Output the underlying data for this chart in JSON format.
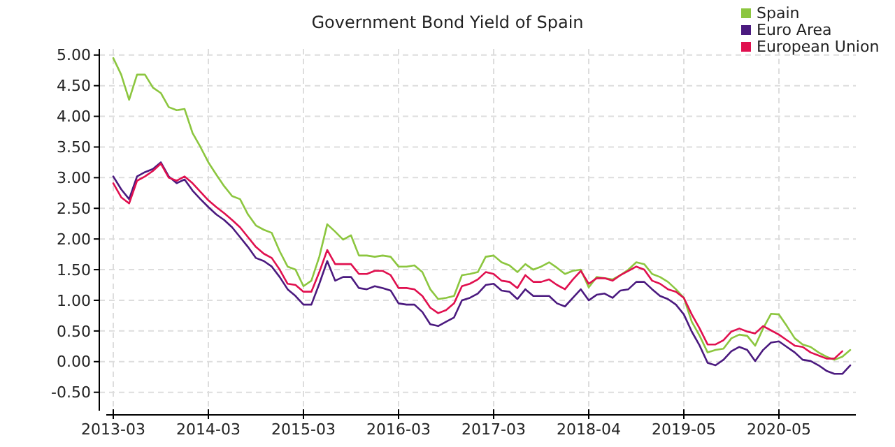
{
  "chart_data": {
    "type": "line",
    "title": "Government Bond Yield of Spain",
    "categories": [
      "2013-03",
      null,
      null,
      null,
      null,
      null,
      null,
      null,
      null,
      null,
      null,
      null,
      "2014-03",
      null,
      null,
      null,
      null,
      null,
      null,
      null,
      null,
      null,
      null,
      null,
      "2015-03",
      null,
      null,
      null,
      null,
      null,
      null,
      null,
      null,
      null,
      null,
      null,
      "2016-03",
      null,
      null,
      null,
      null,
      null,
      null,
      null,
      null,
      null,
      null,
      null,
      "2017-03",
      null,
      null,
      null,
      null,
      null,
      null,
      null,
      null,
      null,
      null,
      null,
      "2018-04",
      null,
      null,
      null,
      null,
      null,
      null,
      null,
      null,
      null,
      null,
      null,
      "2019-05",
      null,
      null,
      null,
      null,
      null,
      null,
      null,
      null,
      null,
      null,
      null,
      "2020-05",
      null,
      null,
      null,
      null,
      null,
      null,
      null,
      null,
      null
    ],
    "series": [
      {
        "name": "Spain",
        "color": "#8cc63f",
        "values": [
          4.95,
          4.68,
          4.27,
          4.68,
          4.68,
          4.47,
          4.38,
          4.15,
          4.1,
          4.12,
          3.73,
          3.5,
          3.25,
          3.05,
          2.86,
          2.7,
          2.65,
          2.4,
          2.22,
          2.15,
          2.1,
          1.8,
          1.55,
          1.5,
          1.23,
          1.32,
          1.71,
          2.24,
          2.12,
          1.99,
          2.06,
          1.73,
          1.73,
          1.71,
          1.73,
          1.71,
          1.55,
          1.55,
          1.57,
          1.46,
          1.18,
          1.02,
          1.04,
          1.07,
          1.41,
          1.43,
          1.46,
          1.71,
          1.73,
          1.62,
          1.57,
          1.46,
          1.59,
          1.5,
          1.55,
          1.62,
          1.53,
          1.43,
          1.48,
          1.5,
          1.21,
          1.38,
          1.36,
          1.34,
          1.41,
          1.5,
          1.62,
          1.59,
          1.43,
          1.38,
          1.3,
          1.18,
          1.04,
          0.65,
          0.42,
          0.15,
          0.19,
          0.21,
          0.38,
          0.44,
          0.42,
          0.26,
          0.54,
          0.78,
          0.77,
          0.58,
          0.38,
          0.28,
          0.24,
          0.15,
          0.08,
          0.03,
          0.08,
          0.19
        ]
      },
      {
        "name": "Euro Area",
        "color": "#4b1a7f",
        "values": [
          3.02,
          2.81,
          2.65,
          3.02,
          3.09,
          3.14,
          3.25,
          3.02,
          2.91,
          2.97,
          2.79,
          2.65,
          2.52,
          2.4,
          2.31,
          2.19,
          2.03,
          1.87,
          1.69,
          1.64,
          1.55,
          1.38,
          1.18,
          1.07,
          0.93,
          0.93,
          1.27,
          1.64,
          1.32,
          1.38,
          1.38,
          1.2,
          1.18,
          1.23,
          1.2,
          1.16,
          0.95,
          0.93,
          0.93,
          0.81,
          0.61,
          0.58,
          0.65,
          0.72,
          1.0,
          1.04,
          1.11,
          1.25,
          1.27,
          1.16,
          1.14,
          1.02,
          1.18,
          1.07,
          1.07,
          1.07,
          0.95,
          0.9,
          1.04,
          1.18,
          1.0,
          1.09,
          1.11,
          1.04,
          1.16,
          1.18,
          1.3,
          1.3,
          1.18,
          1.07,
          1.02,
          0.93,
          0.77,
          0.49,
          0.26,
          -0.02,
          -0.06,
          0.03,
          0.17,
          0.24,
          0.19,
          0.01,
          0.19,
          0.31,
          0.33,
          0.24,
          0.15,
          0.03,
          0.01,
          -0.06,
          -0.15,
          -0.2,
          -0.2,
          -0.06
        ]
      },
      {
        "name": "European Union",
        "color": "#e0104f",
        "values": [
          2.91,
          2.68,
          2.58,
          2.95,
          3.02,
          3.11,
          3.23,
          3.0,
          2.95,
          3.02,
          2.91,
          2.77,
          2.63,
          2.52,
          2.42,
          2.31,
          2.19,
          2.03,
          1.87,
          1.76,
          1.69,
          1.5,
          1.27,
          1.25,
          1.14,
          1.14,
          1.46,
          1.82,
          1.59,
          1.59,
          1.59,
          1.43,
          1.43,
          1.48,
          1.48,
          1.41,
          1.2,
          1.2,
          1.18,
          1.07,
          0.88,
          0.79,
          0.84,
          0.95,
          1.23,
          1.27,
          1.34,
          1.46,
          1.43,
          1.32,
          1.3,
          1.2,
          1.41,
          1.3,
          1.3,
          1.34,
          1.25,
          1.18,
          1.34,
          1.48,
          1.27,
          1.36,
          1.36,
          1.32,
          1.41,
          1.48,
          1.55,
          1.5,
          1.32,
          1.27,
          1.18,
          1.14,
          1.04,
          0.77,
          0.54,
          0.28,
          0.28,
          0.35,
          0.49,
          0.54,
          0.49,
          0.46,
          0.58,
          0.51,
          0.44,
          0.35,
          0.26,
          0.24,
          0.15,
          0.1,
          0.05,
          0.05,
          0.17,
          null
        ]
      }
    ],
    "ylim": [
      -0.8,
      5.1
    ],
    "yticks": [
      {
        "value": -0.5,
        "label": "-0.50"
      },
      {
        "value": 0,
        "label": "0.00"
      },
      {
        "value": 0.5,
        "label": "0.50"
      },
      {
        "value": 1,
        "label": "1.00"
      },
      {
        "value": 1.5,
        "label": "1.50"
      },
      {
        "value": 2,
        "label": "2.00"
      },
      {
        "value": 2.5,
        "label": "2.50"
      },
      {
        "value": 3,
        "label": "3.00"
      },
      {
        "value": 3.5,
        "label": "3.50"
      },
      {
        "value": 4,
        "label": "4.00"
      },
      {
        "value": 4.5,
        "label": "4.50"
      },
      {
        "value": 5,
        "label": "5.00"
      }
    ],
    "grid": true,
    "legend": "top right",
    "marker": "none",
    "line_style": "solid"
  }
}
